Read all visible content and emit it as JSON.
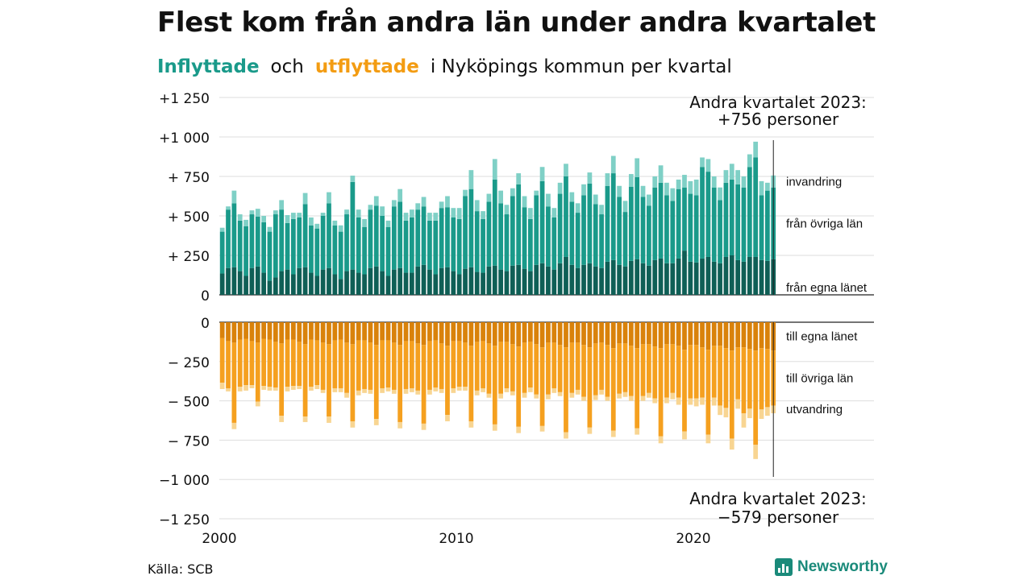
{
  "title": "Flest kom från andra län under andra kvartalet",
  "subtitle": {
    "in_label": "Inflyttade",
    "and": "och",
    "out_label": "utflyttade",
    "rest": "i Nyköpings  kommun  per  kvartal"
  },
  "source": "Källa: SCB",
  "brand": "Newsworthy",
  "chart_data": {
    "type": "bar",
    "stacked": true,
    "period": "quarterly",
    "x_start": "2000 Q1",
    "x_end": "2023 Q2",
    "x_ticks": [
      "2000",
      "2010",
      "2020"
    ],
    "y_ticks": [
      "+1 250",
      "+1 000",
      "+  750",
      "+  500",
      "+  250",
      "0",
      "0",
      "−  250",
      "−  500",
      "−  750",
      "−1 000",
      "−1 250"
    ],
    "inflow_ylim": [
      0,
      1250
    ],
    "outflow_ylim": [
      -1250,
      0
    ],
    "grid": true,
    "colors": {
      "in_own": "#0f5f56",
      "in_other": "#1a9a8a",
      "in_immigration": "#7fd0c6",
      "out_own": "#d9820b",
      "out_other": "#f5a01f",
      "out_emigration": "#f8d592"
    },
    "inflow_series": [
      {
        "name": "från egna länet",
        "values": [
          135,
          170,
          175,
          150,
          120,
          170,
          180,
          140,
          90,
          110,
          150,
          160,
          130,
          170,
          175,
          140,
          120,
          160,
          170,
          130,
          100,
          150,
          160,
          140,
          130,
          170,
          180,
          150,
          120,
          160,
          170,
          140,
          140,
          180,
          190,
          160,
          130,
          170,
          175,
          150,
          130,
          165,
          175,
          145,
          140,
          180,
          185,
          160,
          150,
          185,
          190,
          165,
          150,
          190,
          200,
          180,
          160,
          200,
          240,
          190,
          170,
          190,
          200,
          180,
          170,
          210,
          220,
          190,
          180,
          215,
          225,
          200,
          185,
          220,
          230,
          200,
          200,
          230,
          280,
          210,
          205,
          230,
          240,
          210,
          200,
          240,
          250,
          220,
          210,
          240,
          240,
          220,
          215,
          225
        ]
      },
      {
        "name": "från övriga län",
        "values": [
          265,
          370,
          405,
          320,
          315,
          340,
          315,
          320,
          310,
          400,
          390,
          295,
          350,
          320,
          400,
          300,
          300,
          340,
          410,
          310,
          300,
          360,
          555,
          350,
          300,
          370,
          385,
          350,
          310,
          400,
          420,
          330,
          350,
          360,
          370,
          310,
          340,
          380,
          380,
          340,
          350,
          460,
          495,
          385,
          340,
          410,
          545,
          420,
          360,
          440,
          510,
          390,
          330,
          440,
          520,
          380,
          330,
          440,
          510,
          400,
          350,
          440,
          505,
          395,
          340,
          480,
          550,
          430,
          345,
          470,
          520,
          420,
          380,
          460,
          480,
          430,
          395,
          440,
          400,
          430,
          425,
          580,
          540,
          470,
          400,
          470,
          480,
          480,
          470,
          570,
          630,
          410,
          445,
          455
        ]
      },
      {
        "name": "invandring",
        "values": [
          25,
          20,
          80,
          40,
          40,
          25,
          50,
          40,
          30,
          25,
          60,
          50,
          40,
          30,
          70,
          50,
          30,
          20,
          70,
          30,
          40,
          30,
          40,
          50,
          50,
          30,
          60,
          60,
          40,
          40,
          80,
          50,
          50,
          40,
          60,
          50,
          50,
          40,
          70,
          60,
          70,
          40,
          120,
          70,
          50,
          50,
          130,
          80,
          60,
          50,
          70,
          70,
          70,
          30,
          90,
          80,
          60,
          70,
          80,
          60,
          60,
          70,
          70,
          60,
          60,
          80,
          110,
          70,
          70,
          80,
          120,
          70,
          70,
          70,
          110,
          80,
          80,
          60,
          80,
          80,
          100,
          60,
          80,
          70,
          80,
          80,
          100,
          90,
          70,
          80,
          100,
          90,
          50,
          76
        ]
      }
    ],
    "outflow_series": [
      {
        "name": "till egna länet",
        "values": [
          100,
          120,
          130,
          110,
          105,
          120,
          130,
          105,
          110,
          125,
          135,
          110,
          110,
          125,
          140,
          110,
          115,
          130,
          140,
          115,
          110,
          130,
          140,
          115,
          115,
          130,
          145,
          115,
          115,
          130,
          145,
          120,
          120,
          135,
          145,
          120,
          115,
          135,
          150,
          120,
          120,
          130,
          150,
          125,
          120,
          135,
          150,
          125,
          125,
          140,
          155,
          130,
          125,
          140,
          160,
          130,
          130,
          145,
          160,
          130,
          130,
          145,
          160,
          135,
          130,
          145,
          165,
          135,
          135,
          150,
          165,
          140,
          140,
          155,
          165,
          140,
          140,
          150,
          175,
          145,
          145,
          160,
          175,
          150,
          150,
          165,
          180,
          160,
          160,
          170,
          180,
          165,
          170,
          180
        ]
      },
      {
        "name": "till övriga län",
        "values": [
          285,
          300,
          510,
          300,
          295,
          280,
          375,
          300,
          300,
          290,
          460,
          300,
          295,
          280,
          460,
          300,
          285,
          300,
          460,
          305,
          310,
          320,
          490,
          320,
          310,
          300,
          470,
          305,
          300,
          300,
          490,
          305,
          300,
          300,
          500,
          310,
          300,
          290,
          440,
          300,
          290,
          280,
          480,
          310,
          300,
          320,
          500,
          330,
          295,
          300,
          510,
          320,
          290,
          320,
          500,
          330,
          290,
          300,
          540,
          320,
          300,
          330,
          510,
          330,
          300,
          330,
          525,
          320,
          310,
          320,
          510,
          330,
          310,
          330,
          560,
          340,
          310,
          330,
          520,
          340,
          340,
          320,
          540,
          330,
          380,
          380,
          560,
          330,
          420,
          380,
          600,
          390,
          370,
          350
        ]
      },
      {
        "name": "utvandring",
        "values": [
          40,
          20,
          40,
          30,
          35,
          20,
          30,
          25,
          25,
          20,
          40,
          30,
          25,
          20,
          35,
          25,
          25,
          20,
          40,
          25,
          25,
          30,
          40,
          30,
          25,
          25,
          40,
          30,
          25,
          25,
          40,
          30,
          25,
          25,
          40,
          30,
          25,
          25,
          40,
          30,
          25,
          25,
          40,
          30,
          25,
          25,
          40,
          30,
          25,
          25,
          40,
          30,
          30,
          25,
          35,
          30,
          30,
          25,
          40,
          30,
          30,
          25,
          40,
          30,
          30,
          25,
          40,
          30,
          30,
          30,
          40,
          30,
          30,
          30,
          45,
          35,
          40,
          45,
          50,
          40,
          50,
          45,
          55,
          50,
          60,
          60,
          70,
          60,
          90,
          60,
          90,
          60,
          55,
          49
        ]
      }
    ],
    "right_labels_top": [
      "invandring",
      "från övriga län",
      "från egna länet"
    ],
    "right_labels_bottom": [
      "till egna länet",
      "till övriga län",
      "utvandring"
    ],
    "annotation_top": {
      "line1": "Andra kvartalet 2023:",
      "line2": "+756 personer"
    },
    "annotation_bottom": {
      "line1": "Andra kvartalet 2023:",
      "line2": "−579 personer"
    }
  }
}
